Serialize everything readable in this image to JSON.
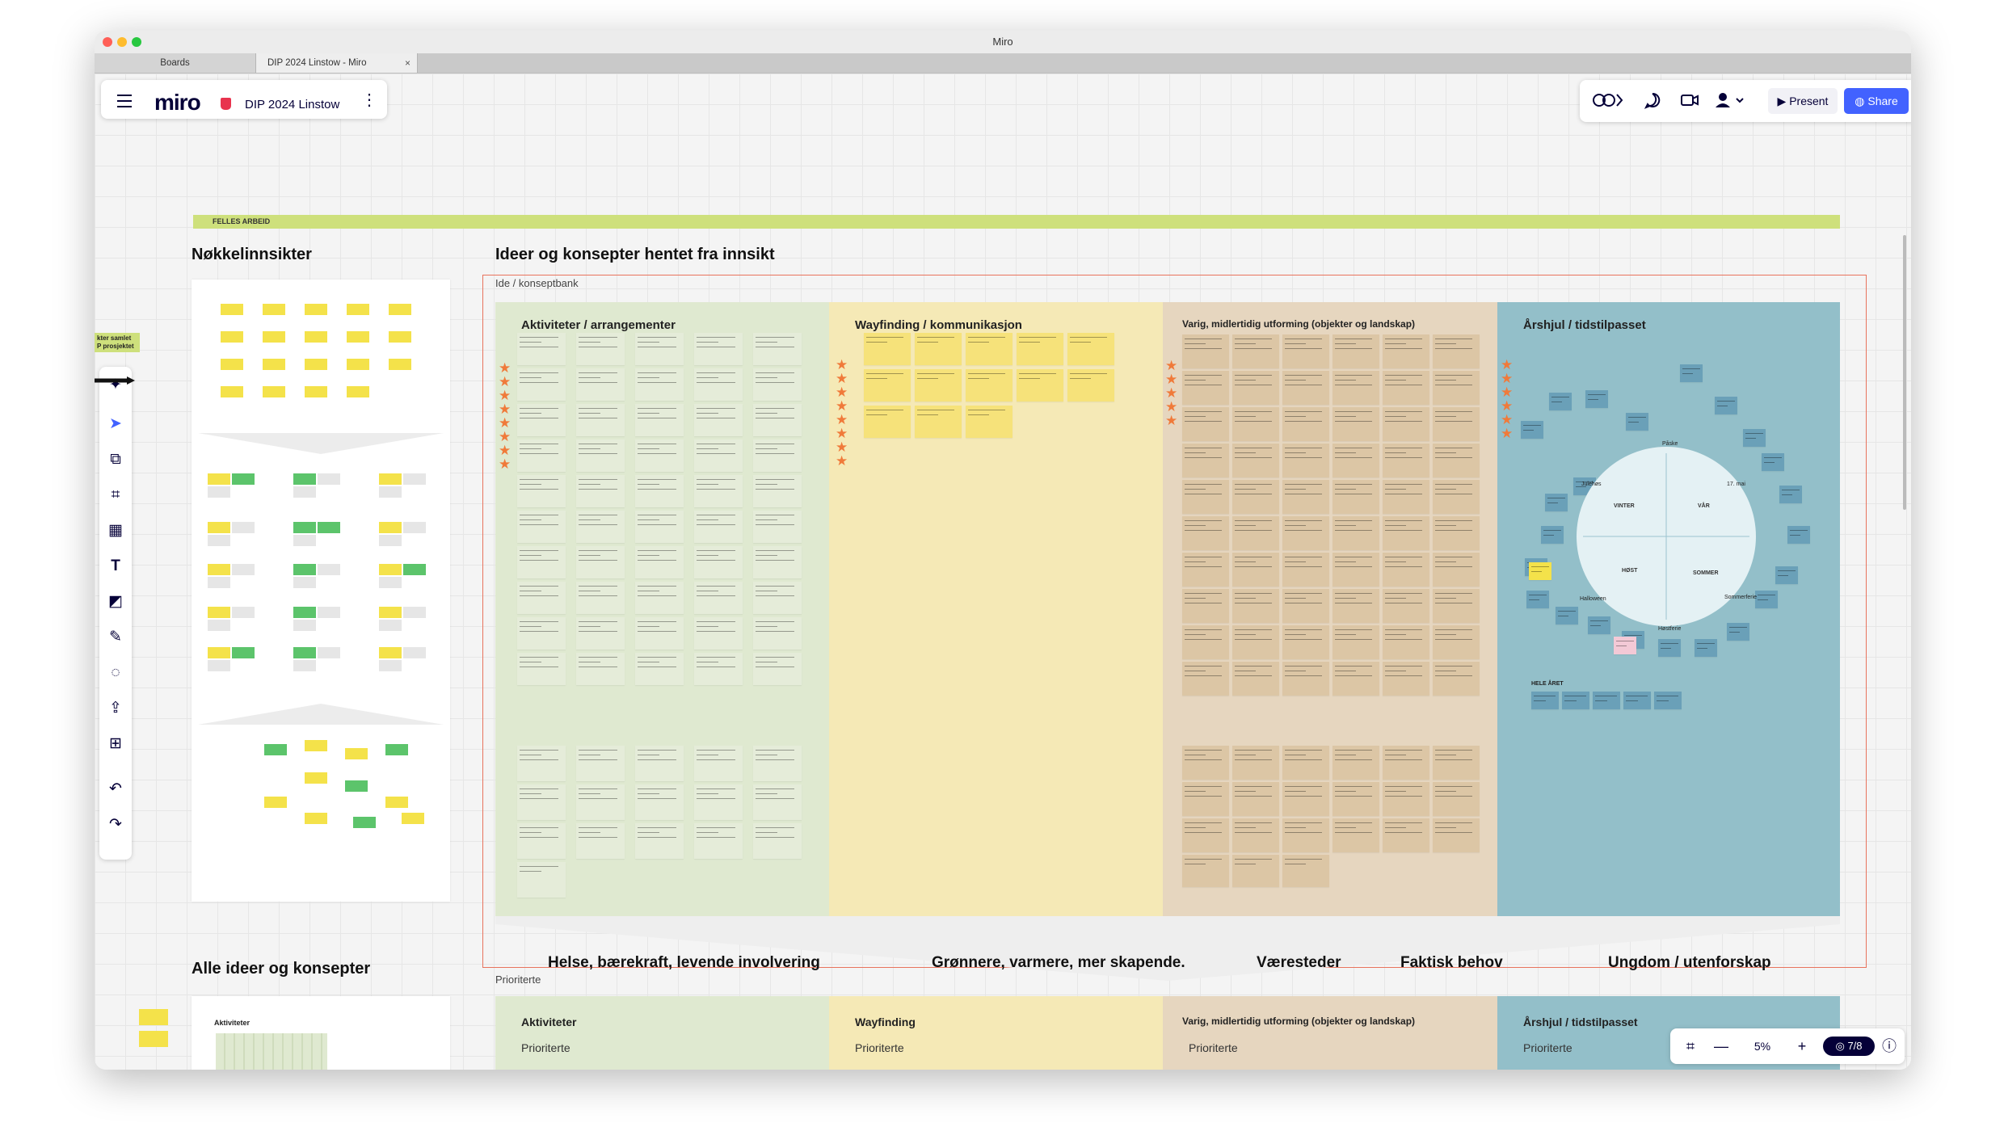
{
  "window": {
    "title": "Miro",
    "tabs": [
      {
        "label": "Boards",
        "active": false
      },
      {
        "label": "DIP 2024 Linstow - Miro",
        "active": true
      }
    ]
  },
  "topbar": {
    "logo": "miro",
    "board_name": "DIP 2024 Linstow",
    "present_label": "Present",
    "share_label": "Share"
  },
  "board": {
    "felles_label": "FELLES ARBEID",
    "side_label_top": "kter samlet",
    "side_label_bottom": "P prosjektet",
    "left_heading": "Nøkkelinnsikter",
    "main_heading": "Ideer og konsepter hentet fra innsikt",
    "frame_label": "Ide / konseptbank",
    "columns": [
      {
        "title": "Aktiviteter / arrangementer",
        "color": "#dfe9d0"
      },
      {
        "title": "Wayfinding / kommunikasjon",
        "color": "#f5e9b6"
      },
      {
        "title": "Varig, midlertidig utforming (objekter og landskap)",
        "color": "#e6d6bf"
      },
      {
        "title": "Årshjul / tidstilpasset",
        "color": "#93bfc9"
      }
    ],
    "clusters": [
      "Helse, bærekraft, levende involvering",
      "Grønnere, varmere, mer skapende.",
      "Væresteder",
      "Faktisk behov",
      "Ungdom / utenforskap"
    ],
    "prioriterte_label": "Prioriterte",
    "bottom_heading": "Alle ideer og konsepter",
    "bottom_columns": [
      {
        "title": "Aktiviteter",
        "subtitle": "Prioriterte"
      },
      {
        "title": "Wayfinding",
        "subtitle": "Prioriterte"
      },
      {
        "title": "Varig, midlertidig utforming (objekter og landskap)",
        "subtitle": "Prioriterte"
      },
      {
        "title": "Årshjul / tidstilpasset",
        "subtitle": "Prioriterte"
      }
    ],
    "thumb_label": "Aktiviteter",
    "wheel": {
      "seasons": [
        "VINTER",
        "VÅR",
        "HØST",
        "SOMMER"
      ],
      "events": [
        "Påske",
        "Julehøs",
        "17. mai",
        "Halloween",
        "Sommerferie",
        "Høstferie"
      ],
      "yearly_label": "HELE ÅRET"
    },
    "colors": {
      "sticky_yellow": "#f4e24a",
      "sticky_green": "#5cc46b",
      "felles_bar": "#cee07c",
      "frame_border": "#e8735d",
      "miro_blue": "#4262ff"
    }
  },
  "zoom": {
    "level": "5%",
    "pages": "7/8"
  }
}
